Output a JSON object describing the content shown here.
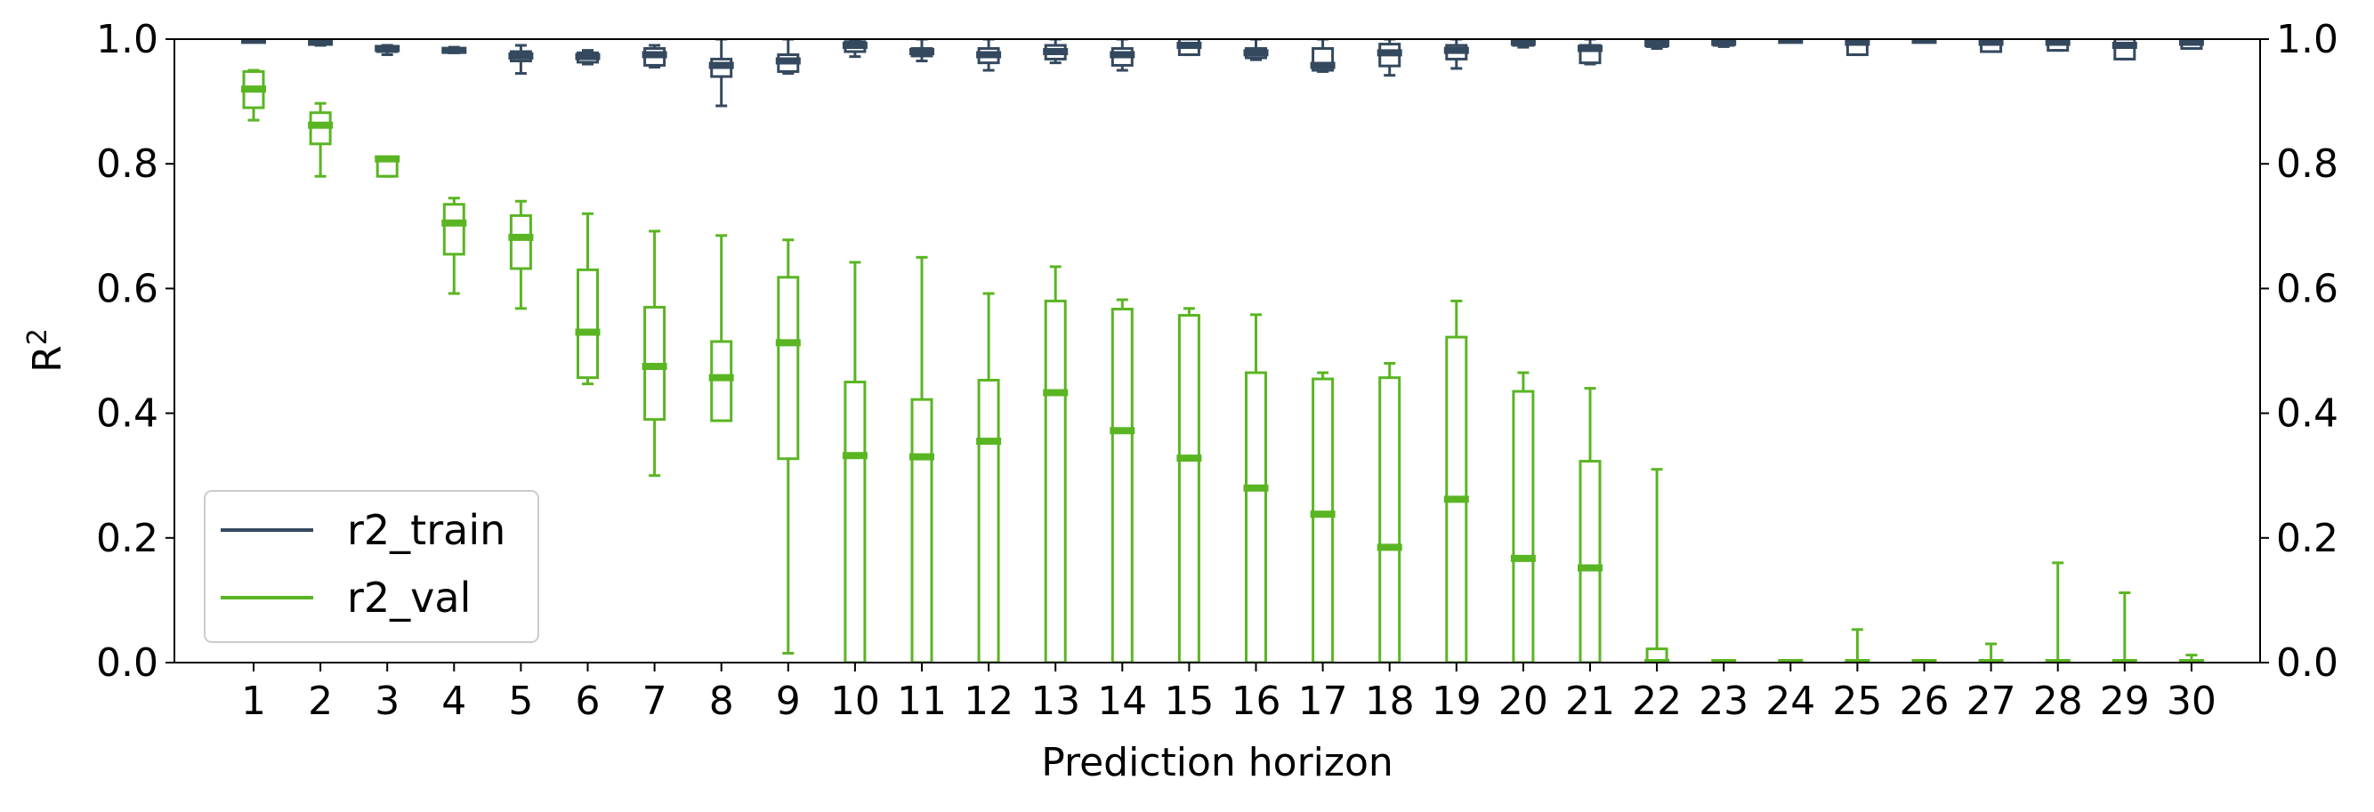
{
  "chart_data": {
    "type": "box",
    "xlabel": "Prediction horizon",
    "ylabel": "R",
    "ylabel_superscript": "2",
    "ylim": [
      0,
      1
    ],
    "y_ticks": [
      "0.0",
      "0.2",
      "0.4",
      "0.6",
      "0.8",
      "1.0"
    ],
    "secondary_y_axis": true,
    "grid": false,
    "legend_position": "lower-left",
    "categories": [
      1,
      2,
      3,
      4,
      5,
      6,
      7,
      8,
      9,
      10,
      11,
      12,
      13,
      14,
      15,
      16,
      17,
      18,
      19,
      20,
      21,
      22,
      23,
      24,
      25,
      26,
      27,
      28,
      29,
      30
    ],
    "series": [
      {
        "name": "r2_train",
        "color": "#34495e",
        "boxes": [
          {
            "whislo": 0.997,
            "q1": 0.997,
            "med": 0.998,
            "q3": 0.999,
            "whishi": 0.999
          },
          {
            "whislo": 0.99,
            "q1": 0.992,
            "med": 0.995,
            "q3": 0.998,
            "whishi": 1.0
          },
          {
            "whislo": 0.975,
            "q1": 0.98,
            "med": 0.985,
            "q3": 0.988,
            "whishi": 0.99
          },
          {
            "whislo": 0.978,
            "q1": 0.98,
            "med": 0.982,
            "q3": 0.985,
            "whishi": 0.987
          },
          {
            "whislo": 0.945,
            "q1": 0.965,
            "med": 0.973,
            "q3": 0.98,
            "whishi": 0.99
          },
          {
            "whislo": 0.96,
            "q1": 0.963,
            "med": 0.972,
            "q3": 0.978,
            "whishi": 0.982
          },
          {
            "whislo": 0.955,
            "q1": 0.958,
            "med": 0.975,
            "q3": 0.985,
            "whishi": 0.99
          },
          {
            "whislo": 0.893,
            "q1": 0.94,
            "med": 0.958,
            "q3": 0.968,
            "whishi": 1.0
          },
          {
            "whislo": 0.945,
            "q1": 0.948,
            "med": 0.965,
            "q3": 0.975,
            "whishi": 1.0
          },
          {
            "whislo": 0.972,
            "q1": 0.98,
            "med": 0.99,
            "q3": 0.996,
            "whishi": 1.0
          },
          {
            "whislo": 0.965,
            "q1": 0.973,
            "med": 0.98,
            "q3": 0.985,
            "whishi": 1.0
          },
          {
            "whislo": 0.95,
            "q1": 0.962,
            "med": 0.975,
            "q3": 0.985,
            "whishi": 1.0
          },
          {
            "whislo": 0.962,
            "q1": 0.968,
            "med": 0.98,
            "q3": 0.99,
            "whishi": 1.0
          },
          {
            "whislo": 0.95,
            "q1": 0.958,
            "med": 0.975,
            "q3": 0.985,
            "whishi": 1.0
          },
          {
            "whislo": 0.975,
            "q1": 0.975,
            "med": 0.99,
            "q3": 1.0,
            "whishi": 1.0
          },
          {
            "whislo": 0.967,
            "q1": 0.97,
            "med": 0.978,
            "q3": 0.985,
            "whishi": 1.0
          },
          {
            "whislo": 0.948,
            "q1": 0.95,
            "med": 0.958,
            "q3": 0.985,
            "whishi": 1.0
          },
          {
            "whislo": 0.942,
            "q1": 0.957,
            "med": 0.978,
            "q3": 0.992,
            "whishi": 1.0
          },
          {
            "whislo": 0.953,
            "q1": 0.968,
            "med": 0.982,
            "q3": 0.99,
            "whishi": 1.0
          },
          {
            "whislo": 0.987,
            "q1": 0.99,
            "med": 0.995,
            "q3": 0.998,
            "whishi": 1.0
          },
          {
            "whislo": 0.96,
            "q1": 0.962,
            "med": 0.985,
            "q3": 0.99,
            "whishi": 1.0
          },
          {
            "whislo": 0.985,
            "q1": 0.988,
            "med": 0.993,
            "q3": 1.0,
            "whishi": 1.0
          },
          {
            "whislo": 0.988,
            "q1": 0.99,
            "med": 0.995,
            "q3": 1.0,
            "whishi": 1.0
          },
          {
            "whislo": 0.996,
            "q1": 0.997,
            "med": 0.998,
            "q3": 1.0,
            "whishi": 1.0
          },
          {
            "whislo": 0.975,
            "q1": 0.975,
            "med": 0.995,
            "q3": 1.0,
            "whishi": 1.0
          },
          {
            "whislo": 0.996,
            "q1": 0.997,
            "med": 0.998,
            "q3": 1.0,
            "whishi": 1.0
          },
          {
            "whislo": 0.98,
            "q1": 0.98,
            "med": 0.995,
            "q3": 1.0,
            "whishi": 1.0
          },
          {
            "whislo": 0.982,
            "q1": 0.982,
            "med": 0.995,
            "q3": 1.0,
            "whishi": 1.0
          },
          {
            "whislo": 0.968,
            "q1": 0.968,
            "med": 0.99,
            "q3": 1.0,
            "whishi": 1.0
          },
          {
            "whislo": 0.985,
            "q1": 0.985,
            "med": 0.995,
            "q3": 1.0,
            "whishi": 1.0
          }
        ]
      },
      {
        "name": "r2_val",
        "color": "#5ab523",
        "boxes": [
          {
            "whislo": 0.87,
            "q1": 0.89,
            "med": 0.92,
            "q3": 0.948,
            "whishi": 0.95
          },
          {
            "whislo": 0.78,
            "q1": 0.832,
            "med": 0.862,
            "q3": 0.882,
            "whishi": 0.897
          },
          {
            "whislo": 0.78,
            "q1": 0.78,
            "med": 0.808,
            "q3": 0.81,
            "whishi": 0.81
          },
          {
            "whislo": 0.592,
            "q1": 0.655,
            "med": 0.705,
            "q3": 0.735,
            "whishi": 0.745
          },
          {
            "whislo": 0.568,
            "q1": 0.632,
            "med": 0.682,
            "q3": 0.717,
            "whishi": 0.74
          },
          {
            "whislo": 0.447,
            "q1": 0.457,
            "med": 0.53,
            "q3": 0.63,
            "whishi": 0.72
          },
          {
            "whislo": 0.3,
            "q1": 0.39,
            "med": 0.475,
            "q3": 0.57,
            "whishi": 0.692
          },
          {
            "whislo": 0.388,
            "q1": 0.388,
            "med": 0.457,
            "q3": 0.515,
            "whishi": 0.685
          },
          {
            "whislo": 0.015,
            "q1": 0.327,
            "med": 0.513,
            "q3": 0.618,
            "whishi": 0.678
          },
          {
            "whislo": 0.0,
            "q1": 0.0,
            "med": 0.332,
            "q3": 0.45,
            "whishi": 0.642
          },
          {
            "whislo": 0.0,
            "q1": 0.0,
            "med": 0.33,
            "q3": 0.422,
            "whishi": 0.65
          },
          {
            "whislo": 0.0,
            "q1": 0.0,
            "med": 0.355,
            "q3": 0.453,
            "whishi": 0.592
          },
          {
            "whislo": 0.0,
            "q1": 0.0,
            "med": 0.433,
            "q3": 0.58,
            "whishi": 0.635
          },
          {
            "whislo": 0.0,
            "q1": 0.0,
            "med": 0.372,
            "q3": 0.567,
            "whishi": 0.582
          },
          {
            "whislo": 0.0,
            "q1": 0.0,
            "med": 0.328,
            "q3": 0.557,
            "whishi": 0.568
          },
          {
            "whislo": 0.0,
            "q1": 0.0,
            "med": 0.28,
            "q3": 0.465,
            "whishi": 0.558
          },
          {
            "whislo": 0.0,
            "q1": 0.0,
            "med": 0.238,
            "q3": 0.455,
            "whishi": 0.465
          },
          {
            "whislo": 0.0,
            "q1": 0.0,
            "med": 0.185,
            "q3": 0.457,
            "whishi": 0.48
          },
          {
            "whislo": 0.0,
            "q1": 0.0,
            "med": 0.262,
            "q3": 0.522,
            "whishi": 0.58
          },
          {
            "whislo": 0.0,
            "q1": 0.0,
            "med": 0.167,
            "q3": 0.435,
            "whishi": 0.465
          },
          {
            "whislo": 0.0,
            "q1": 0.0,
            "med": 0.152,
            "q3": 0.323,
            "whishi": 0.44
          },
          {
            "whislo": 0.0,
            "q1": 0.0,
            "med": 0.0,
            "q3": 0.022,
            "whishi": 0.31
          },
          {
            "whislo": 0.0,
            "q1": 0.0,
            "med": 0.0,
            "q3": 0.0,
            "whishi": 0.0
          },
          {
            "whislo": 0.0,
            "q1": 0.0,
            "med": 0.0,
            "q3": 0.0,
            "whishi": 0.0
          },
          {
            "whislo": 0.0,
            "q1": 0.0,
            "med": 0.0,
            "q3": 0.0,
            "whishi": 0.053
          },
          {
            "whislo": 0.0,
            "q1": 0.0,
            "med": 0.0,
            "q3": 0.0,
            "whishi": 0.0
          },
          {
            "whislo": 0.0,
            "q1": 0.0,
            "med": 0.0,
            "q3": 0.0,
            "whishi": 0.03
          },
          {
            "whislo": 0.0,
            "q1": 0.0,
            "med": 0.0,
            "q3": 0.0,
            "whishi": 0.16
          },
          {
            "whislo": 0.0,
            "q1": 0.0,
            "med": 0.0,
            "q3": 0.0,
            "whishi": 0.112
          },
          {
            "whislo": 0.0,
            "q1": 0.0,
            "med": 0.0,
            "q3": 0.0,
            "whishi": 0.012
          }
        ]
      }
    ]
  }
}
